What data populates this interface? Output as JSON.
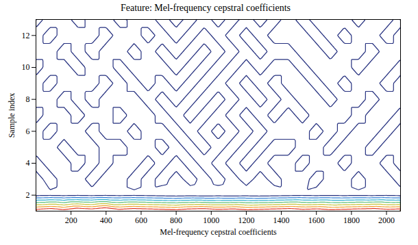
{
  "chart_data": {
    "type": "contour",
    "title": "Feature: Mel-frequency cepstral coefficients",
    "x_label": "Mel-frequency cepstral coefficients",
    "y_label": "Sample index",
    "x": [
      0,
      80,
      160,
      240,
      320,
      400,
      480,
      560,
      640,
      720,
      800,
      880,
      960,
      1040,
      1120,
      1200,
      1280,
      1360,
      1440,
      1520,
      1600,
      1680,
      1760,
      1840,
      1920,
      2000,
      2080
    ],
    "y": [
      1,
      2,
      3,
      4,
      5,
      6,
      7,
      8,
      9,
      10,
      11,
      12,
      13
    ],
    "z": [
      [
        34,
        36,
        33,
        37,
        35,
        38,
        34,
        36,
        35,
        34,
        33,
        35,
        36,
        34,
        35,
        33,
        34,
        35,
        36,
        34,
        35,
        33,
        34,
        35,
        36,
        34,
        35
      ],
      [
        -1,
        -0.5,
        -1,
        -0.5,
        -1,
        -0.5,
        -1,
        -0.5,
        -1,
        -1.5,
        -2,
        -1.5,
        -2,
        -1.5,
        -2,
        -1.5,
        -2,
        -1.5,
        -1,
        -0.5,
        -1,
        -0.5,
        -1,
        -0.5,
        -1,
        -0.5,
        -1
      ],
      [
        -1,
        1,
        -1,
        -1,
        1,
        -1,
        -1,
        1,
        -1,
        1,
        -1,
        1,
        -1,
        1,
        -1,
        1,
        -1,
        1,
        -1,
        -1,
        1,
        -1,
        -1,
        1,
        -1,
        -1,
        1
      ],
      [
        1,
        -1,
        -1,
        1,
        -1,
        1,
        -1,
        -1,
        1,
        -1,
        1,
        -1,
        1,
        -1,
        1,
        -1,
        1,
        -1,
        -1,
        1,
        -1,
        -1,
        1,
        -1,
        -1,
        1,
        -1
      ],
      [
        -1,
        -1,
        1,
        -1,
        -1,
        1,
        1,
        -1,
        -1,
        1,
        -1,
        1,
        -1,
        1,
        -1,
        1,
        -1,
        1,
        1,
        -1,
        -1,
        1,
        -1,
        -1,
        1,
        -1,
        -1
      ],
      [
        -1,
        1,
        -1,
        -1,
        1,
        -1,
        -1,
        1,
        -1,
        -1,
        1,
        -1,
        1,
        -1,
        1,
        -1,
        1,
        -1,
        -1,
        -1,
        1,
        -1,
        1,
        -1,
        -1,
        1,
        -1
      ],
      [
        1,
        -1,
        -1,
        1,
        -1,
        -1,
        1,
        -1,
        -1,
        1,
        -1,
        1,
        -1,
        1,
        -1,
        1,
        -1,
        1,
        -1,
        1,
        -1,
        -1,
        -1,
        1,
        -1,
        -1,
        1
      ],
      [
        -1,
        -1,
        1,
        -1,
        1,
        -1,
        -1,
        -1,
        1,
        -1,
        1,
        -1,
        1,
        -1,
        1,
        -1,
        1,
        -1,
        1,
        -1,
        -1,
        1,
        -1,
        -1,
        1,
        -1,
        -1
      ],
      [
        -1,
        1,
        -1,
        -1,
        -1,
        1,
        -1,
        1,
        -1,
        1,
        -1,
        1,
        -1,
        1,
        -1,
        1,
        -1,
        1,
        -1,
        -1,
        1,
        -1,
        1,
        -1,
        -1,
        1,
        -1
      ],
      [
        1,
        -1,
        -1,
        1,
        -1,
        -1,
        1,
        -1,
        -1,
        -1,
        1,
        -1,
        1,
        -1,
        1,
        -1,
        1,
        -1,
        -1,
        1,
        -1,
        -1,
        -1,
        1,
        -1,
        -1,
        1
      ],
      [
        -1,
        -1,
        1,
        -1,
        1,
        -1,
        -1,
        1,
        -1,
        1,
        -1,
        1,
        -1,
        1,
        -1,
        1,
        -1,
        1,
        1,
        -1,
        -1,
        1,
        -1,
        -1,
        1,
        -1,
        -1
      ],
      [
        -1,
        1,
        -1,
        -1,
        -1,
        1,
        -1,
        -1,
        1,
        -1,
        1,
        -1,
        1,
        -1,
        1,
        -1,
        1,
        -1,
        -1,
        -1,
        1,
        -1,
        1,
        -1,
        -1,
        1,
        -1
      ],
      [
        1,
        -1,
        -1,
        1,
        -1,
        -1,
        1,
        -1,
        -1,
        1,
        -1,
        1,
        -1,
        1,
        -1,
        1,
        -1,
        1,
        -1,
        1,
        -1,
        -1,
        -1,
        1,
        -1,
        -1,
        1
      ]
    ],
    "levels": [
      0,
      5,
      10,
      15,
      20,
      25,
      30
    ],
    "colors": [
      "#25307f",
      "#2f7fd6",
      "#2eb0d0",
      "#5cbf7a",
      "#c6c43a",
      "#f0a030",
      "#e03a2a"
    ],
    "xlim": [
      0,
      2080
    ],
    "ylim": [
      1,
      13
    ],
    "xticks": [
      200,
      400,
      600,
      800,
      1000,
      1200,
      1400,
      1600,
      1800,
      2000
    ],
    "yticks": [
      2,
      4,
      6,
      8,
      10,
      12
    ]
  }
}
